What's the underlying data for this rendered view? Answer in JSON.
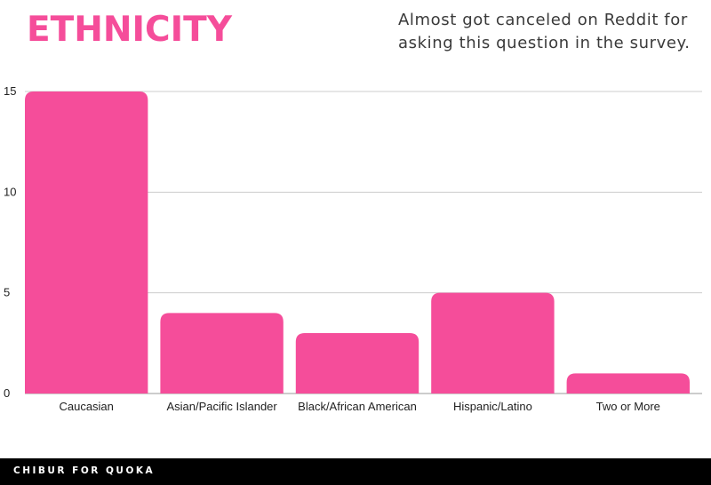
{
  "header": {
    "title": "ETHNICITY",
    "subtitle": "Almost got canceled on Reddit for asking this question in the survey."
  },
  "footer": {
    "credit": "CHIBUR FOR QUOKA"
  },
  "colors": {
    "accent": "#f54d9a",
    "bar": "#f54d9a",
    "grid": "#cccccc",
    "footer_bg": "#000000"
  },
  "chart_data": {
    "type": "bar",
    "categories": [
      "Caucasian",
      "Asian/Pacific Islander",
      "Black/African American",
      "Hispanic/Latino",
      "Two or More"
    ],
    "values": [
      15,
      4,
      3,
      5,
      1
    ],
    "title": "ETHNICITY",
    "xlabel": "",
    "ylabel": "",
    "ylim": [
      0,
      15
    ],
    "yticks": [
      0,
      5,
      10,
      15
    ],
    "grid": true,
    "legend": "none"
  }
}
